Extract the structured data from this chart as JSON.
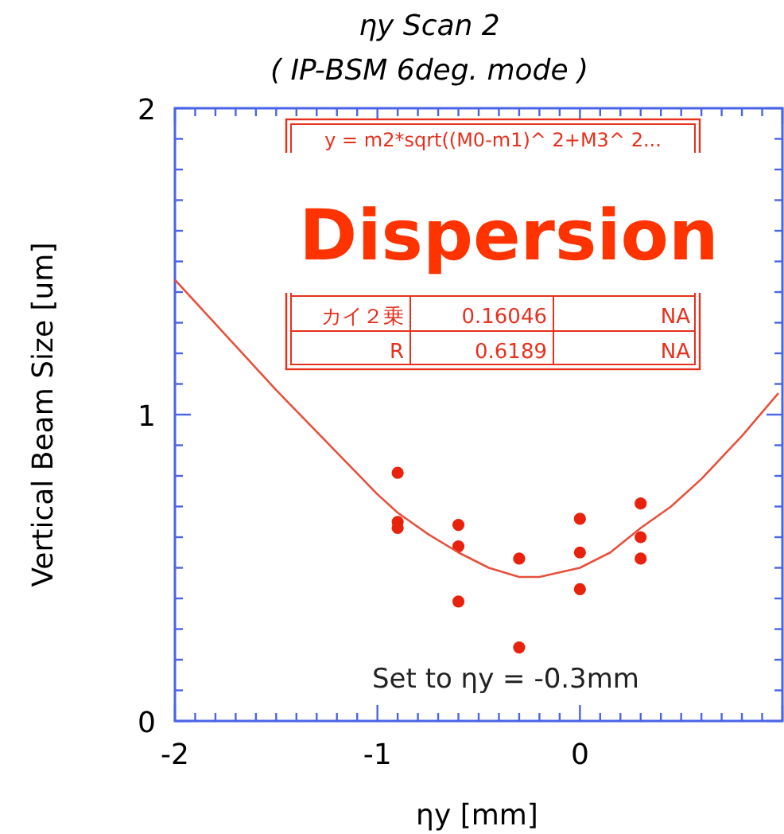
{
  "chart_data": {
    "type": "scatter",
    "title": "ηy Scan 2",
    "subtitle": "( IP-BSM 6deg. mode )",
    "xlabel": "ηy [mm]",
    "ylabel": "Vertical Beam Size [um]",
    "xlim": [
      -2,
      1
    ],
    "xticks": [
      -2,
      -1,
      0
    ],
    "ylim": [
      0,
      2
    ],
    "yticks": [
      0,
      1,
      2
    ],
    "series": [
      {
        "marker": "circle",
        "color": "#e8220c",
        "x": [
          -0.9,
          -0.9,
          -0.9,
          -0.6,
          -0.6,
          -0.6,
          -0.3,
          -0.3,
          0,
          0,
          0,
          0.3,
          0.3,
          0.3
        ],
        "values": [
          0.81,
          0.65,
          0.63,
          0.64,
          0.57,
          0.39,
          0.53,
          0.24,
          0.66,
          0.55,
          0.43,
          0.71,
          0.6,
          0.53
        ]
      },
      {
        "type": "line",
        "marker": "none",
        "color": "#e8503c",
        "x": [
          -2,
          -1.75,
          -1.5,
          -1.25,
          -1,
          -0.9,
          -0.75,
          -0.6,
          -0.45,
          -0.3,
          -0.2,
          0,
          0.15,
          0.3,
          0.45,
          0.6,
          0.8,
          0.98
        ],
        "values": [
          1.44,
          1.26,
          1.08,
          0.91,
          0.74,
          0.68,
          0.61,
          0.55,
          0.5,
          0.47,
          0.47,
          0.5,
          0.55,
          0.63,
          0.7,
          0.79,
          0.93,
          1.07
        ]
      }
    ],
    "annotations": [
      "y = m2*sqrt((M0-m1)^ 2+M3^ 2...",
      "カイ２乗",
      "0.16046",
      "NA",
      "R",
      "0.6189",
      "NA",
      "Dispersion",
      "Set to ηy = -0.3mm"
    ]
  }
}
